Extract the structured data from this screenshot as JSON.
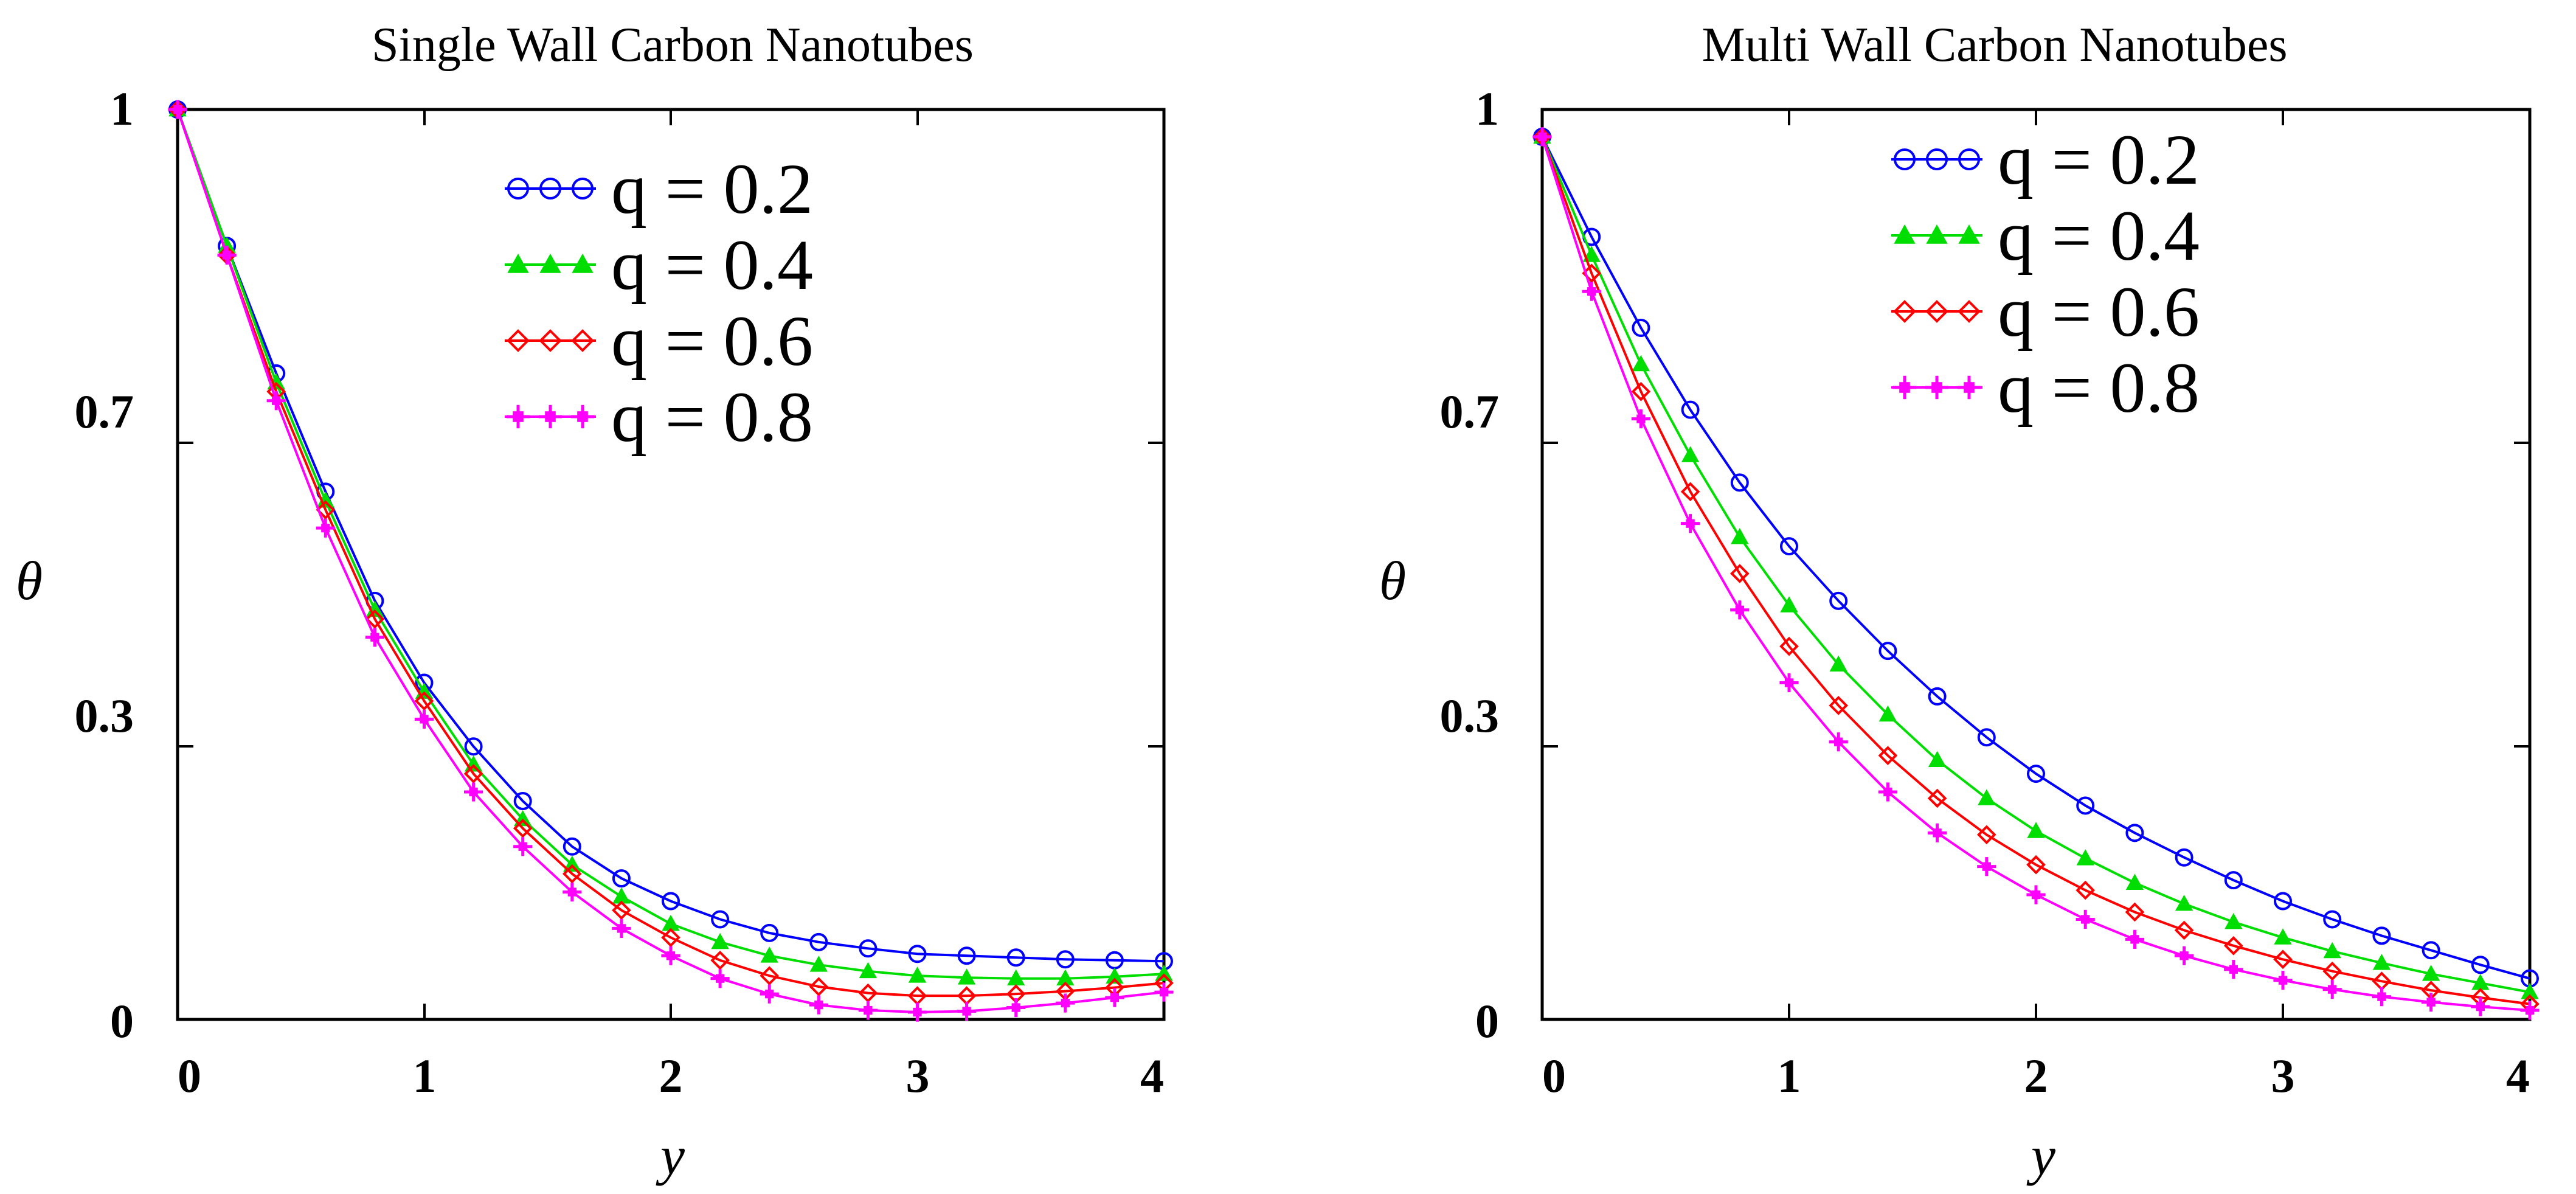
{
  "chart_data": [
    {
      "type": "line",
      "title": "Single Wall Carbon Nanotubes",
      "xlabel": "y",
      "ylabel": "θ",
      "xlim": [
        0,
        4
      ],
      "ylim": [
        0,
        1
      ],
      "xticks": [
        "0",
        "1",
        "2",
        "3",
        "4"
      ],
      "yticks": [
        "0",
        "0.3",
        "0.7",
        "1"
      ],
      "legend_position": "top-right",
      "x": [
        0,
        0.2,
        0.4,
        0.6,
        0.8,
        1.0,
        1.2,
        1.4,
        1.6,
        1.8,
        2.0,
        2.2,
        2.4,
        2.6,
        2.8,
        3.0,
        3.2,
        3.4,
        3.6,
        3.8,
        4.0
      ],
      "series": [
        {
          "name": "q = 0.2",
          "color": "#0000ff",
          "marker": "circle",
          "values": [
            1.0,
            0.85,
            0.71,
            0.58,
            0.46,
            0.37,
            0.3,
            0.24,
            0.19,
            0.155,
            0.13,
            0.11,
            0.095,
            0.085,
            0.078,
            0.072,
            0.07,
            0.068,
            0.066,
            0.065,
            0.064
          ]
        },
        {
          "name": "q = 0.4",
          "color": "#00dd00",
          "marker": "triangle",
          "values": [
            1.0,
            0.85,
            0.7,
            0.57,
            0.45,
            0.36,
            0.28,
            0.22,
            0.17,
            0.135,
            0.105,
            0.085,
            0.07,
            0.06,
            0.053,
            0.048,
            0.046,
            0.045,
            0.045,
            0.047,
            0.05
          ]
        },
        {
          "name": "q = 0.6",
          "color": "#ff0000",
          "marker": "diamond",
          "values": [
            1.0,
            0.84,
            0.69,
            0.56,
            0.44,
            0.35,
            0.27,
            0.21,
            0.16,
            0.12,
            0.09,
            0.065,
            0.048,
            0.036,
            0.029,
            0.026,
            0.026,
            0.028,
            0.031,
            0.035,
            0.04
          ]
        },
        {
          "name": "q = 0.8",
          "color": "#ff00ff",
          "marker": "square-plus",
          "values": [
            1.0,
            0.84,
            0.68,
            0.54,
            0.42,
            0.33,
            0.25,
            0.19,
            0.14,
            0.1,
            0.07,
            0.045,
            0.028,
            0.016,
            0.01,
            0.008,
            0.009,
            0.013,
            0.018,
            0.024,
            0.03
          ]
        }
      ]
    },
    {
      "type": "line",
      "title": "Multi Wall Carbon Nanotubes",
      "xlabel": "y",
      "ylabel": "θ",
      "xlim": [
        0,
        4
      ],
      "ylim": [
        0,
        1
      ],
      "xticks": [
        "0",
        "1",
        "2",
        "3",
        "4"
      ],
      "yticks": [
        "0",
        "0.3",
        "0.7",
        "1"
      ],
      "legend_position": "top-right",
      "x": [
        0,
        0.2,
        0.4,
        0.6,
        0.8,
        1.0,
        1.2,
        1.4,
        1.6,
        1.8,
        2.0,
        2.2,
        2.4,
        2.6,
        2.8,
        3.0,
        3.2,
        3.4,
        3.6,
        3.8,
        4.0
      ],
      "series": [
        {
          "name": "q = 0.2",
          "color": "#0000ff",
          "marker": "circle",
          "values": [
            0.97,
            0.86,
            0.76,
            0.67,
            0.59,
            0.52,
            0.46,
            0.405,
            0.355,
            0.31,
            0.27,
            0.235,
            0.205,
            0.178,
            0.153,
            0.13,
            0.11,
            0.092,
            0.076,
            0.06,
            0.045
          ]
        },
        {
          "name": "q = 0.4",
          "color": "#00dd00",
          "marker": "triangle",
          "values": [
            0.97,
            0.84,
            0.72,
            0.62,
            0.53,
            0.455,
            0.39,
            0.335,
            0.285,
            0.243,
            0.207,
            0.177,
            0.15,
            0.127,
            0.107,
            0.09,
            0.075,
            0.062,
            0.05,
            0.04,
            0.03
          ]
        },
        {
          "name": "q = 0.6",
          "color": "#ff0000",
          "marker": "diamond",
          "values": [
            0.97,
            0.82,
            0.69,
            0.58,
            0.49,
            0.41,
            0.345,
            0.29,
            0.243,
            0.203,
            0.17,
            0.142,
            0.118,
            0.098,
            0.081,
            0.066,
            0.053,
            0.042,
            0.032,
            0.024,
            0.017
          ]
        },
        {
          "name": "q = 0.8",
          "color": "#ff00ff",
          "marker": "square-plus",
          "values": [
            0.97,
            0.8,
            0.66,
            0.545,
            0.45,
            0.37,
            0.305,
            0.25,
            0.205,
            0.168,
            0.137,
            0.11,
            0.088,
            0.07,
            0.055,
            0.043,
            0.033,
            0.025,
            0.019,
            0.014,
            0.01
          ]
        }
      ]
    }
  ]
}
